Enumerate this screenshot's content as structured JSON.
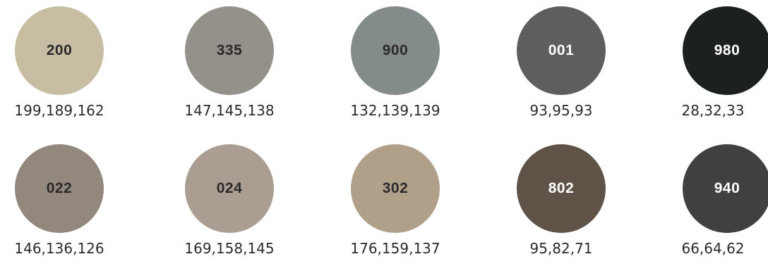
{
  "swatches": [
    {
      "code": "200",
      "rgb": "199,189,162",
      "color": "#c7bda2",
      "text_color": "#2a2a2a"
    },
    {
      "code": "335",
      "rgb": "147,145,138",
      "color": "#93918a",
      "text_color": "#2a2a2a"
    },
    {
      "code": "900",
      "rgb": "132,139,139",
      "color": "#848b8b",
      "text_color": "#2a2a2a"
    },
    {
      "code": "001",
      "rgb": "93,95,93",
      "color": "#5d5f5d",
      "text_color": "#ffffff"
    },
    {
      "code": "980",
      "rgb": "28,32,33",
      "color": "#1c2021",
      "text_color": "#ffffff"
    },
    {
      "code": "022",
      "rgb": "146,136,126",
      "color": "#92887e",
      "text_color": "#2a2a2a"
    },
    {
      "code": "024",
      "rgb": "169,158,145",
      "color": "#a99e91",
      "text_color": "#2a2a2a"
    },
    {
      "code": "302",
      "rgb": "176,159,137",
      "color": "#b09f89",
      "text_color": "#2a2a2a"
    },
    {
      "code": "802",
      "rgb": "95,82,71",
      "color": "#5f5247",
      "text_color": "#ffffff"
    },
    {
      "code": "940",
      "rgb": "66,64,62",
      "color": "#42403e",
      "text_color": "#ffffff"
    }
  ]
}
